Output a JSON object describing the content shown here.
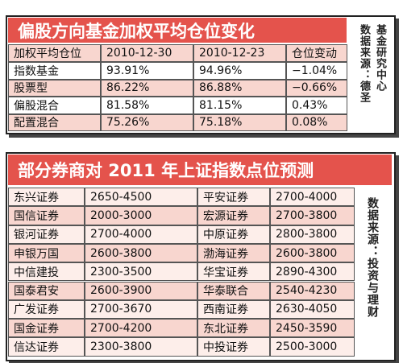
{
  "table1": {
    "title": "偏股方向基金加权平均仓位变化",
    "header": [
      "加权平均仓位",
      "2010-12-30",
      "2010-12-23",
      "仓位变动"
    ],
    "rows": [
      [
        "指数基金",
        "93.91%",
        "94.96%",
        "−1.04%"
      ],
      [
        "股票型",
        "86.22%",
        "86.88%",
        "−0.66%"
      ],
      [
        "偏股混合",
        "81.58%",
        "81.15%",
        "0.43%"
      ],
      [
        "配置混合",
        "75.26%",
        "75.18%",
        "0.08%"
      ]
    ],
    "source": [
      "基金研究中心",
      "数据来源：德圣"
    ]
  },
  "table2": {
    "title": "部分券商对 2011 年上证指数点位预测",
    "rows": [
      [
        "东兴证券",
        "2650-4500",
        "平安证券",
        "2700-4000"
      ],
      [
        "国信证券",
        "2000-3000",
        "宏源证券",
        "2700-3800"
      ],
      [
        "银河证券",
        "2700-4000",
        "中原证券",
        "2800-3800"
      ],
      [
        "申银万国",
        "2600-3800",
        "渤海证券",
        "2600-3800"
      ],
      [
        "中信建投",
        "2300-3500",
        "华宝证券",
        "2890-4300"
      ],
      [
        "国泰君安",
        "2600-3900",
        "华泰联合",
        "2540-4230"
      ],
      [
        "广发证券",
        "2700-3670",
        "西南证券",
        "2630-4050"
      ],
      [
        "国金证券",
        "2700-4200",
        "东北证券",
        "2450-3590"
      ],
      [
        "信达证券",
        "2300-3800",
        "中投证券",
        "2500-3000"
      ]
    ],
    "source": "数据来源：投资与理财"
  }
}
